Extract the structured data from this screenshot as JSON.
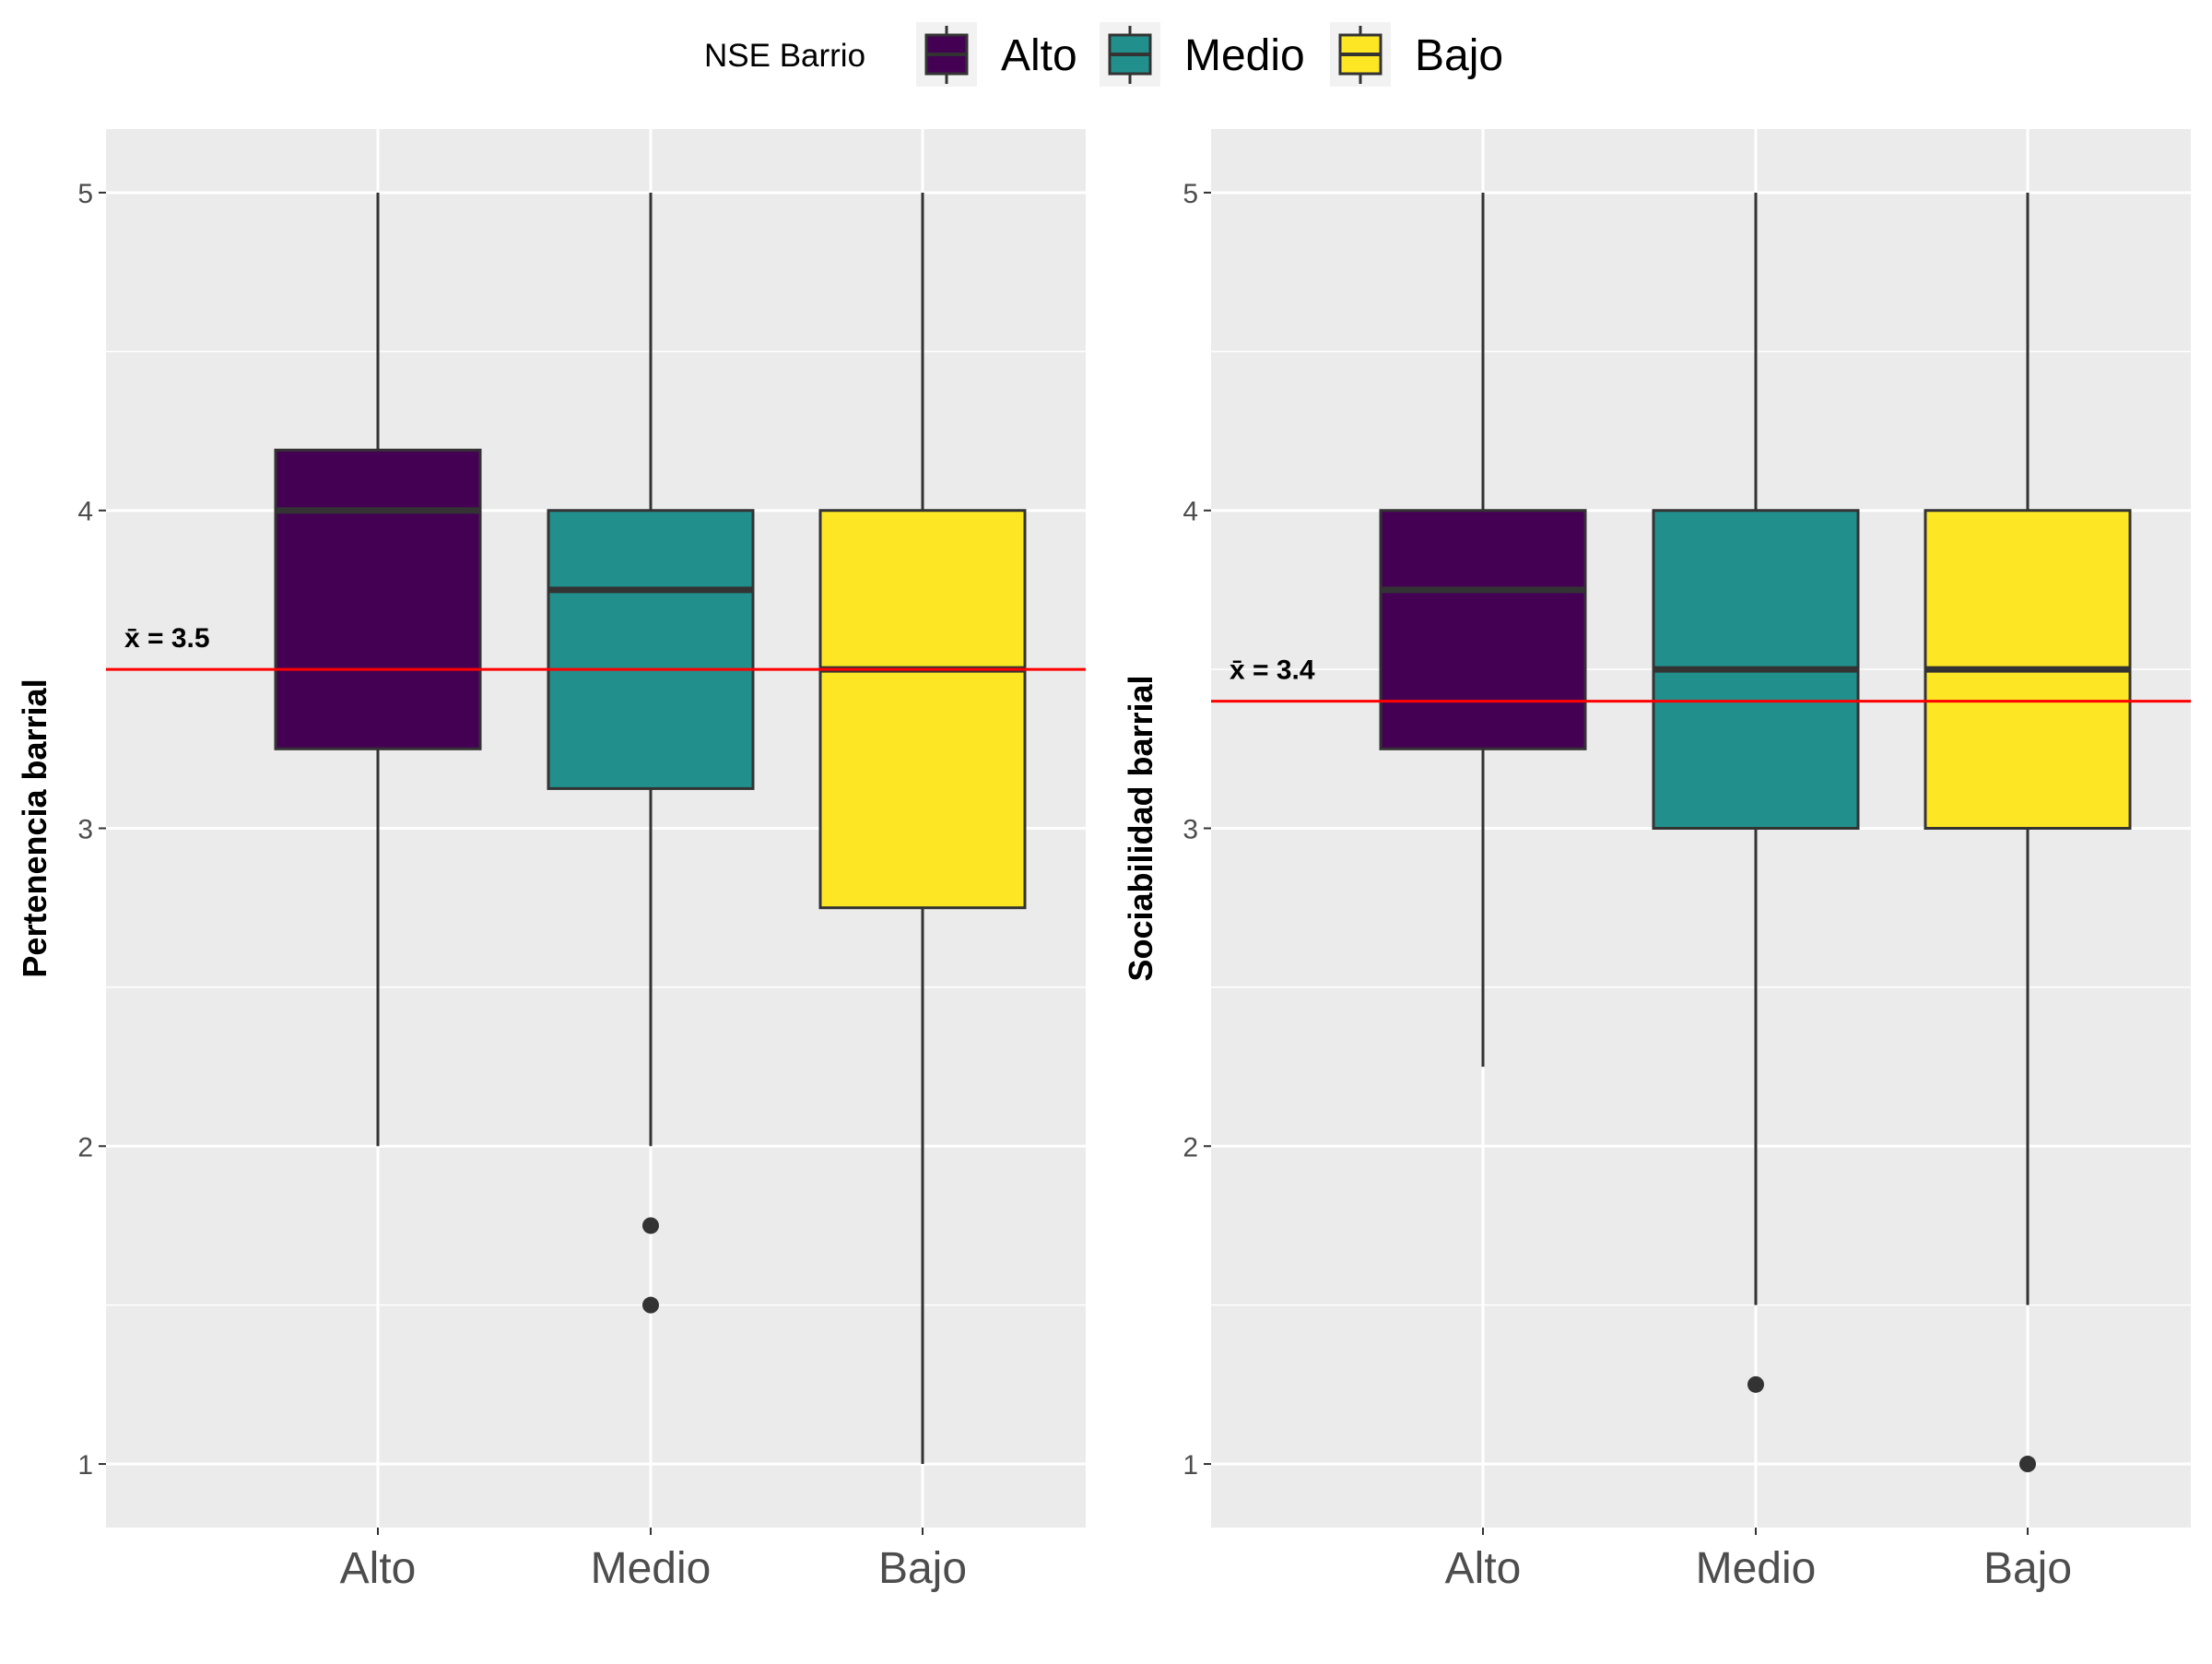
{
  "legend": {
    "title": "NSE Barrio",
    "items": [
      {
        "label": "Alto",
        "color": "#440154"
      },
      {
        "label": "Medio",
        "color": "#21908C"
      },
      {
        "label": "Bajo",
        "color": "#FDE725"
      }
    ]
  },
  "chart_data": [
    {
      "type": "boxplot",
      "xlabel": "",
      "ylabel": "Pertenencia barrial",
      "ylim": [
        0.8,
        5.2
      ],
      "yticks": [
        1,
        2,
        3,
        4,
        5
      ],
      "grid": true,
      "legend_placement": "top",
      "categories": [
        "Alto",
        "Medio",
        "Bajo"
      ],
      "colors": [
        "#440154",
        "#21908C",
        "#FDE725"
      ],
      "boxes": [
        {
          "category": "Alto",
          "whisker_low": 2.0,
          "q1": 3.25,
          "median": 4.0,
          "q3": 4.19,
          "whisker_high": 5.0,
          "outliers": []
        },
        {
          "category": "Medio",
          "whisker_low": 2.0,
          "q1": 3.125,
          "median": 3.75,
          "q3": 4.0,
          "whisker_high": 5.0,
          "outliers": [
            1.75,
            1.5
          ]
        },
        {
          "category": "Bajo",
          "whisker_low": 1.0,
          "q1": 2.75,
          "median": 3.5,
          "q3": 4.0,
          "whisker_high": 5.0,
          "outliers": []
        }
      ],
      "mean_line": {
        "value": 3.5,
        "label": "x̄ = 3.5",
        "color": "#ff0000"
      }
    },
    {
      "type": "boxplot",
      "xlabel": "",
      "ylabel": "Sociabilidad barrial",
      "ylim": [
        0.8,
        5.2
      ],
      "yticks": [
        1,
        2,
        3,
        4,
        5
      ],
      "grid": true,
      "legend_placement": "top",
      "categories": [
        "Alto",
        "Medio",
        "Bajo"
      ],
      "colors": [
        "#440154",
        "#21908C",
        "#FDE725"
      ],
      "boxes": [
        {
          "category": "Alto",
          "whisker_low": 2.25,
          "q1": 3.25,
          "median": 3.75,
          "q3": 4.0,
          "whisker_high": 5.0,
          "outliers": []
        },
        {
          "category": "Medio",
          "whisker_low": 1.5,
          "q1": 3.0,
          "median": 3.5,
          "q3": 4.0,
          "whisker_high": 5.0,
          "outliers": [
            1.25
          ]
        },
        {
          "category": "Bajo",
          "whisker_low": 1.5,
          "q1": 3.0,
          "median": 3.5,
          "q3": 4.0,
          "whisker_high": 5.0,
          "outliers": [
            1.0
          ]
        }
      ],
      "mean_line": {
        "value": 3.4,
        "label": "x̄ = 3.4",
        "color": "#ff0000"
      }
    }
  ]
}
